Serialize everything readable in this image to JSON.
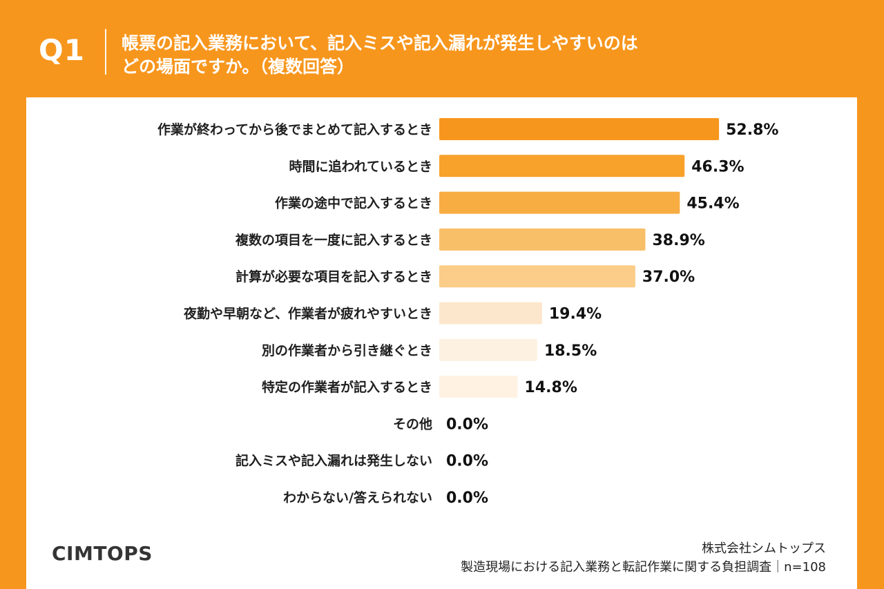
{
  "header": {
    "question_number": "Q1",
    "question_line1": "帳票の記入業務において、記入ミスや記入漏れが発生しやすいのは",
    "question_line2": "どの場面ですか。（複数回答）"
  },
  "footer": {
    "logo": "CIMTOPS",
    "company": "株式会社シムトップス",
    "survey": "製造現場における記入業務と転記作業に関する負担調査｜n=108"
  },
  "colors": {
    "background": "#f7961d",
    "panel": "#ffffff",
    "bars": [
      "#f7961d",
      "#f8a12b",
      "#f8ad43",
      "#f9bf68",
      "#fbcd88",
      "#fce7cc",
      "#fdf1e2",
      "#fff2e3",
      "#fff5ea",
      "#fff5ea",
      "#fff5ea"
    ]
  },
  "chart_data": {
    "type": "bar",
    "orientation": "horizontal",
    "title": "帳票の記入業務において、記入ミスや記入漏れが発生しやすいのは どの場面ですか。（複数回答）",
    "categories": [
      "作業が終わってから後でまとめて記入するとき",
      "時間に追われているとき",
      "作業の途中で記入するとき",
      "複数の項目を一度に記入するとき",
      "計算が必要な項目を記入するとき",
      "夜勤や早朝など、作業者が疲れやすいとき",
      "別の作業者から引き継ぐとき",
      "特定の作業者が記入するとき",
      "その他",
      "記入ミスや記入漏れは発生しない",
      "わからない/答えられない"
    ],
    "values": [
      52.8,
      46.3,
      45.4,
      38.9,
      37.0,
      19.4,
      18.5,
      14.8,
      0.0,
      0.0,
      0.0
    ],
    "value_labels": [
      "52.8%",
      "46.3%",
      "45.4%",
      "38.9%",
      "37.0%",
      "19.4%",
      "18.5%",
      "14.8%",
      "0.0%",
      "0.0%",
      "0.0%"
    ],
    "xlim": [
      0,
      55
    ],
    "xlabel": "",
    "ylabel": ""
  }
}
